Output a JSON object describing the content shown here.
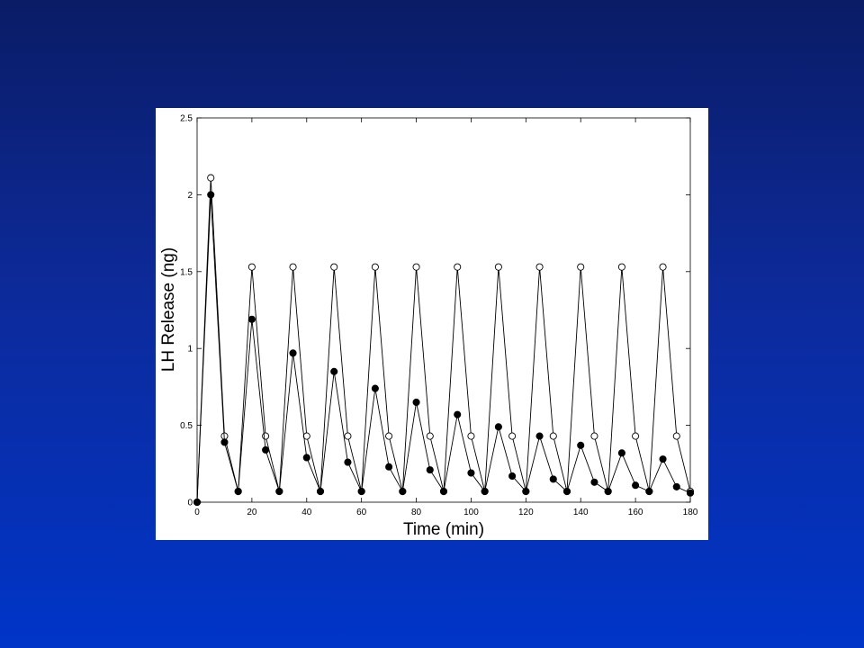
{
  "chart_data": {
    "type": "line",
    "x_label": "Time (min)",
    "y_label": "LH Release (ng)",
    "x": [
      0,
      5,
      10,
      15,
      20,
      25,
      30,
      35,
      40,
      45,
      50,
      55,
      60,
      65,
      70,
      75,
      80,
      85,
      90,
      95,
      100,
      105,
      110,
      115,
      120,
      125,
      130,
      135,
      140,
      145,
      150,
      155,
      160,
      165,
      170,
      175,
      180
    ],
    "series": [
      {
        "color": "#000000",
        "marker": "open",
        "values": [
          0,
          2.11,
          0.43,
          0.07,
          1.53,
          0.43,
          0.07,
          1.53,
          0.43,
          0.07,
          1.53,
          0.43,
          0.07,
          1.53,
          0.43,
          0.07,
          1.53,
          0.43,
          0.07,
          1.53,
          0.43,
          0.07,
          1.53,
          0.43,
          0.07,
          1.53,
          0.43,
          0.07,
          1.53,
          0.43,
          0.07,
          1.53,
          0.43,
          0.07,
          1.53,
          0.43,
          0.07
        ]
      },
      {
        "color": "#000000",
        "marker": "filled",
        "values": [
          0,
          2.0,
          0.39,
          0.07,
          1.19,
          0.34,
          0.07,
          0.97,
          0.29,
          0.07,
          0.85,
          0.26,
          0.07,
          0.74,
          0.23,
          0.07,
          0.65,
          0.21,
          0.07,
          0.57,
          0.19,
          0.07,
          0.49,
          0.17,
          0.07,
          0.43,
          0.15,
          0.07,
          0.37,
          0.13,
          0.07,
          0.32,
          0.11,
          0.07,
          0.28,
          0.1,
          0.06
        ]
      }
    ],
    "xlim": [
      0,
      180
    ],
    "xticks": [
      0,
      20,
      40,
      60,
      80,
      100,
      120,
      140,
      160,
      180
    ],
    "ylim": [
      0,
      2.5
    ],
    "yticks": [
      0,
      0.5,
      1,
      1.5,
      2,
      2.5
    ],
    "grid": false
  }
}
